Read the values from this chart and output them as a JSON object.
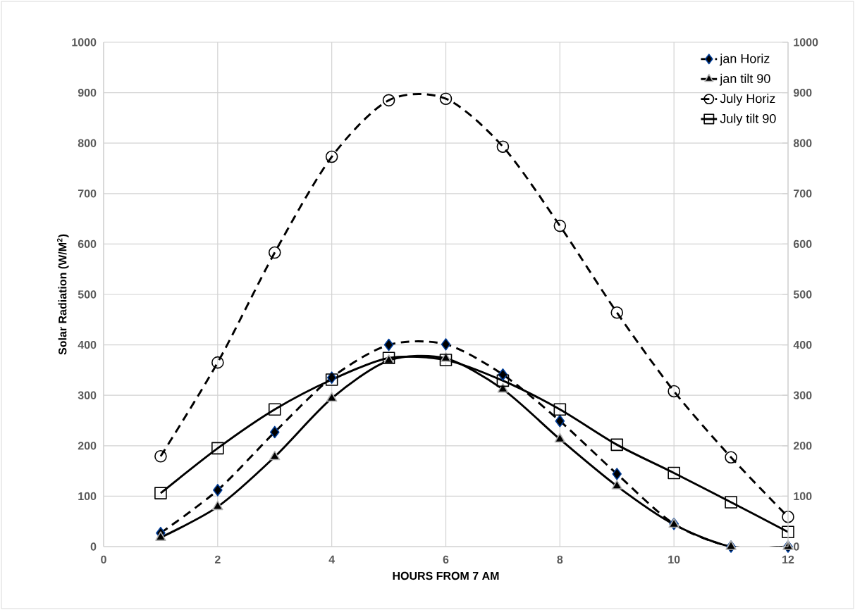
{
  "chart_data": {
    "type": "line",
    "xlabel": "HOURS FROM 7 AM",
    "ylabel": "Solar Radiation (W/M$^{2}$)",
    "x": [
      1,
      2,
      3,
      4,
      5,
      6,
      7,
      8,
      9,
      10,
      11,
      12
    ],
    "series": [
      {
        "name": "jan Horiz",
        "color": "#000000",
        "marker": "diamond",
        "line_style": "dashed",
        "values": [
          27,
          112,
          227,
          335,
          400,
          401,
          341,
          249,
          144,
          45,
          0,
          0
        ]
      },
      {
        "name": "jan tilt 90",
        "color": "#000000",
        "marker": "triangle",
        "line_style": "solid",
        "values": [
          18,
          79,
          178,
          294,
          369,
          373,
          312,
          213,
          120,
          44,
          0,
          0
        ]
      },
      {
        "name": "July Horiz",
        "color": "#000000",
        "marker": "circle",
        "line_style": "dashed",
        "values": [
          179,
          365,
          583,
          773,
          885,
          888,
          793,
          636,
          464,
          308,
          177,
          59
        ]
      },
      {
        "name": "July tilt 90",
        "color": "#000000",
        "marker": "square",
        "line_style": "solid",
        "values": [
          106,
          195,
          272,
          331,
          374,
          370,
          329,
          272,
          202,
          146,
          88,
          29
        ]
      }
    ],
    "xlim": [
      0,
      12
    ],
    "xticks": [
      0,
      2,
      4,
      6,
      8,
      10,
      12
    ],
    "ylim": [
      0,
      1000
    ],
    "yticks": [
      0,
      100,
      200,
      300,
      400,
      500,
      600,
      700,
      800,
      900,
      1000
    ],
    "y2lim": [
      0,
      1000
    ],
    "y2ticks": [
      0,
      100,
      200,
      300,
      400,
      500,
      600,
      700,
      800,
      900,
      1000
    ],
    "grid": true,
    "legend": "top right"
  }
}
